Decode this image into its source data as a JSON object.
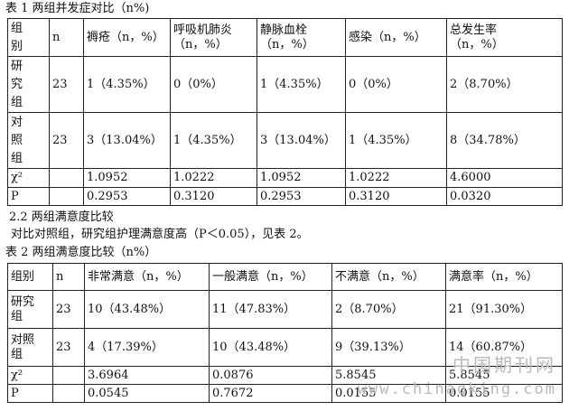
{
  "table1": {
    "caption": "表 1 两组并发症对比（n%)",
    "header": {
      "group": [
        "组",
        "别"
      ],
      "n": "n",
      "c1": [
        "褥疮（n，%）"
      ],
      "c2": [
        "呼吸机肺炎",
        "（n，%）"
      ],
      "c3": [
        "静脉血栓",
        "（n，%）"
      ],
      "c4": [
        "感染（n，%）"
      ],
      "c5": [
        "总发生率",
        "（n，%）"
      ]
    },
    "rows": [
      {
        "label": [
          "研",
          "究",
          "组"
        ],
        "n": "23",
        "c1": "1（4.35%）",
        "c2": "0（0%）",
        "c3": "1（4.35%）",
        "c4": "0（0%）",
        "c5": "2（8.70%）"
      },
      {
        "label": [
          "对",
          "照",
          "组"
        ],
        "n": "23",
        "c1": "3（13.04%）",
        "c2": "1（4.35%）",
        "c3": "3（13.04%）",
        "c4": "1（4.35%）",
        "c5": "8（34.78%）"
      },
      {
        "label": [
          "χ²"
        ],
        "n": "",
        "c1": "1.0952",
        "c2": "1.0222",
        "c3": "1.0952",
        "c4": "1.0222",
        "c5": "4.6000"
      },
      {
        "label": [
          "P"
        ],
        "n": "",
        "c1": "0.2953",
        "c2": "0.3120",
        "c3": "0.2953",
        "c4": "0.3120",
        "c5": "0.0320"
      }
    ]
  },
  "section_title": "2.2 两组满意度比较",
  "paragraph": "对比对照组，研究组护理满意度高（P＜0.05），见表 2。",
  "table2": {
    "caption": "表  2 两组满意度比较（n%）",
    "header": {
      "group": "组别",
      "n": "n",
      "c1": "非常满意（n，%）",
      "c2": "一般满意（n，%）",
      "c3": "不满意（n，%）",
      "c4": "满意率（n，%）"
    },
    "rows": [
      {
        "label": [
          "研究",
          "组"
        ],
        "n": "23",
        "c1": "10（43.48%）",
        "c2": "11（47.83%）",
        "c3": "2（8.70%）",
        "c4": "21（91.30%）"
      },
      {
        "label": [
          "对照",
          "组"
        ],
        "n": "23",
        "c1": "4（17.39%）",
        "c2": "10（43.48%）",
        "c3": "9（39.13%）",
        "c4": "14（60.87%）"
      },
      {
        "label": [
          "χ²"
        ],
        "n": "",
        "c1": "3.6964",
        "c2": "0.0876",
        "c3": "5.8545",
        "c4": "5.8545"
      },
      {
        "label": [
          "P"
        ],
        "n": "",
        "c1": "0.0545",
        "c2": "0.7672",
        "c3": "0.0155",
        "c4": "0.0155"
      }
    ]
  },
  "watermark": {
    "cn": "中国期刊网",
    "en": "www.chinaqking.com"
  }
}
